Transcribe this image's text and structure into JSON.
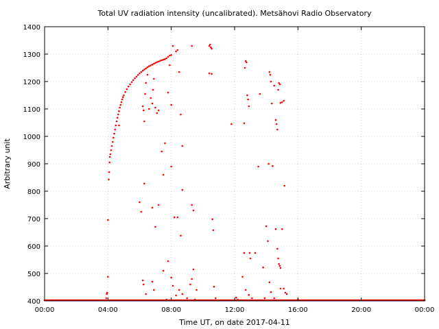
{
  "chart_data": {
    "type": "scatter",
    "title": "Total UV radiation intensity (uncalibrated). Metsähovi Radio Observatory",
    "xlabel": "Time UT, on date 2017-04-11",
    "ylabel": "Arbitrary unit",
    "xlim": [
      0,
      24
    ],
    "ylim": [
      400,
      1400
    ],
    "x_ticks": [
      0,
      4,
      8,
      12,
      16,
      20,
      24
    ],
    "x_tick_labels": [
      "00:00",
      "04:00",
      "08:00",
      "12:00",
      "16:00",
      "20:00",
      "00:00"
    ],
    "y_ticks": [
      400,
      500,
      600,
      700,
      800,
      900,
      1000,
      1100,
      1200,
      1300,
      1400
    ],
    "y_tick_labels": [
      "400",
      "500",
      "600",
      "700",
      "800",
      "900",
      "1000",
      "1100",
      "1200",
      "1300",
      "1400"
    ],
    "grid": true,
    "marker_color": "#ff0000",
    "series": [
      {
        "x_unit": "hours UT",
        "points": [
          [
            0.0,
            400
          ],
          [
            0.5,
            400
          ],
          [
            1.0,
            400
          ],
          [
            1.5,
            400
          ],
          [
            2.0,
            400
          ],
          [
            2.5,
            400
          ],
          [
            3.0,
            400
          ],
          [
            3.5,
            400
          ],
          [
            3.9,
            410
          ],
          [
            3.92,
            425
          ],
          [
            3.95,
            430
          ],
          [
            4.0,
            488
          ],
          [
            4.0,
            695
          ],
          [
            4.05,
            843
          ],
          [
            4.08,
            870
          ],
          [
            4.1,
            905
          ],
          [
            4.12,
            925
          ],
          [
            4.15,
            935
          ],
          [
            4.2,
            950
          ],
          [
            4.25,
            965
          ],
          [
            4.3,
            980
          ],
          [
            4.35,
            995
          ],
          [
            4.4,
            1010
          ],
          [
            4.45,
            1025
          ],
          [
            4.5,
            1040
          ],
          [
            4.55,
            1055
          ],
          [
            4.6,
            1068
          ],
          [
            4.65,
            1080
          ],
          [
            4.7,
            1092
          ],
          [
            4.75,
            1105
          ],
          [
            4.8,
            1115
          ],
          [
            4.85,
            1125
          ],
          [
            4.9,
            1135
          ],
          [
            4.95,
            1143
          ],
          [
            5.0,
            1150
          ],
          [
            5.1,
            1162
          ],
          [
            5.2,
            1172
          ],
          [
            5.3,
            1182
          ],
          [
            5.4,
            1190
          ],
          [
            5.5,
            1198
          ],
          [
            5.6,
            1205
          ],
          [
            5.7,
            1212
          ],
          [
            5.8,
            1218
          ],
          [
            5.9,
            1224
          ],
          [
            6.0,
            1230
          ],
          [
            6.1,
            1235
          ],
          [
            6.2,
            1240
          ],
          [
            6.3,
            1244
          ],
          [
            6.4,
            1248
          ],
          [
            6.5,
            1252
          ],
          [
            6.6,
            1256
          ],
          [
            6.7,
            1259
          ],
          [
            6.8,
            1262
          ],
          [
            6.9,
            1265
          ],
          [
            7.0,
            1268
          ],
          [
            7.1,
            1271
          ],
          [
            7.2,
            1273
          ],
          [
            7.3,
            1276
          ],
          [
            7.4,
            1278
          ],
          [
            7.5,
            1280
          ],
          [
            7.6,
            1282
          ],
          [
            7.7,
            1285
          ],
          [
            7.8,
            1290
          ],
          [
            7.9,
            1295
          ],
          [
            8.0,
            1297
          ],
          [
            4.7,
            1040
          ],
          [
            6.2,
            1110
          ],
          [
            6.25,
            1095
          ],
          [
            6.3,
            1055
          ],
          [
            6.35,
            1155
          ],
          [
            6.4,
            1195
          ],
          [
            6.5,
            1225
          ],
          [
            6.6,
            1100
          ],
          [
            6.7,
            1140
          ],
          [
            6.8,
            1120
          ],
          [
            6.85,
            1170
          ],
          [
            6.9,
            1210
          ],
          [
            7.0,
            1105
          ],
          [
            7.1,
            1085
          ],
          [
            7.2,
            1095
          ],
          [
            7.4,
            945
          ],
          [
            7.6,
            975
          ],
          [
            7.8,
            1160
          ],
          [
            7.9,
            1260
          ],
          [
            8.0,
            1115
          ],
          [
            8.1,
            1330
          ],
          [
            8.3,
            1310
          ],
          [
            8.4,
            1315
          ],
          [
            8.5,
            1235
          ],
          [
            8.6,
            1080
          ],
          [
            8.0,
            890
          ],
          [
            8.7,
            965
          ],
          [
            7.5,
            860
          ],
          [
            6.0,
            760
          ],
          [
            6.1,
            725
          ],
          [
            6.3,
            828
          ],
          [
            6.8,
            740
          ],
          [
            7.0,
            670
          ],
          [
            7.2,
            750
          ],
          [
            8.2,
            705
          ],
          [
            8.4,
            705
          ],
          [
            8.7,
            805
          ],
          [
            8.6,
            638
          ],
          [
            6.2,
            475
          ],
          [
            6.25,
            460
          ],
          [
            6.4,
            425
          ],
          [
            6.8,
            470
          ],
          [
            6.9,
            440
          ],
          [
            7.5,
            510
          ],
          [
            7.7,
            405
          ],
          [
            7.8,
            545
          ],
          [
            8.0,
            485
          ],
          [
            8.1,
            455
          ],
          [
            8.3,
            420
          ],
          [
            8.5,
            440
          ],
          [
            8.7,
            425
          ],
          [
            9.0,
            410
          ],
          [
            9.2,
            460
          ],
          [
            9.3,
            480
          ],
          [
            9.4,
            515
          ],
          [
            9.5,
            405
          ],
          [
            9.6,
            440
          ],
          [
            9.3,
            750
          ],
          [
            9.4,
            730
          ],
          [
            9.3,
            1330
          ],
          [
            10.4,
            1330
          ],
          [
            10.45,
            1335
          ],
          [
            10.5,
            1325
          ],
          [
            10.55,
            1320
          ],
          [
            10.4,
            1230
          ],
          [
            10.55,
            1228
          ],
          [
            10.6,
            698
          ],
          [
            10.65,
            658
          ],
          [
            10.7,
            452
          ],
          [
            10.8,
            410
          ],
          [
            11.8,
            1045
          ],
          [
            12.1,
            412
          ],
          [
            12.2,
            405
          ],
          [
            12.5,
            488
          ],
          [
            12.6,
            1048
          ],
          [
            12.65,
            1250
          ],
          [
            12.7,
            1275
          ],
          [
            12.75,
            1270
          ],
          [
            12.8,
            1150
          ],
          [
            12.85,
            1135
          ],
          [
            12.9,
            1110
          ],
          [
            12.95,
            575
          ],
          [
            13.0,
            555
          ],
          [
            12.6,
            575
          ],
          [
            12.7,
            440
          ],
          [
            12.9,
            422
          ],
          [
            13.1,
            410
          ],
          [
            13.3,
            575
          ],
          [
            13.5,
            890
          ],
          [
            13.6,
            1155
          ],
          [
            13.8,
            522
          ],
          [
            13.9,
            410
          ],
          [
            14.0,
            672
          ],
          [
            14.1,
            618
          ],
          [
            14.15,
            900
          ],
          [
            14.2,
            1235
          ],
          [
            14.25,
            1225
          ],
          [
            14.3,
            1200
          ],
          [
            14.35,
            1120
          ],
          [
            14.4,
            892
          ],
          [
            14.5,
            1185
          ],
          [
            14.6,
            1060
          ],
          [
            14.65,
            1045
          ],
          [
            14.7,
            1025
          ],
          [
            14.75,
            1170
          ],
          [
            14.8,
            1195
          ],
          [
            14.85,
            1190
          ],
          [
            14.9,
            1122
          ],
          [
            15.0,
            1125
          ],
          [
            15.1,
            1130
          ],
          [
            14.6,
            662
          ],
          [
            14.7,
            590
          ],
          [
            14.75,
            555
          ],
          [
            14.8,
            535
          ],
          [
            14.85,
            528
          ],
          [
            14.9,
            520
          ],
          [
            15.0,
            662
          ],
          [
            15.15,
            820
          ],
          [
            14.2,
            468
          ],
          [
            14.3,
            432
          ],
          [
            14.5,
            410
          ],
          [
            14.9,
            445
          ],
          [
            15.1,
            445
          ],
          [
            15.2,
            430
          ],
          [
            15.3,
            425
          ],
          [
            16.0,
            405
          ],
          [
            16.5,
            400
          ],
          [
            17.0,
            400
          ],
          [
            18.0,
            400
          ],
          [
            19.0,
            400
          ],
          [
            20.0,
            400
          ],
          [
            21.0,
            400
          ],
          [
            22.0,
            400
          ],
          [
            23.0,
            400
          ],
          [
            24.0,
            400
          ]
        ]
      }
    ]
  }
}
